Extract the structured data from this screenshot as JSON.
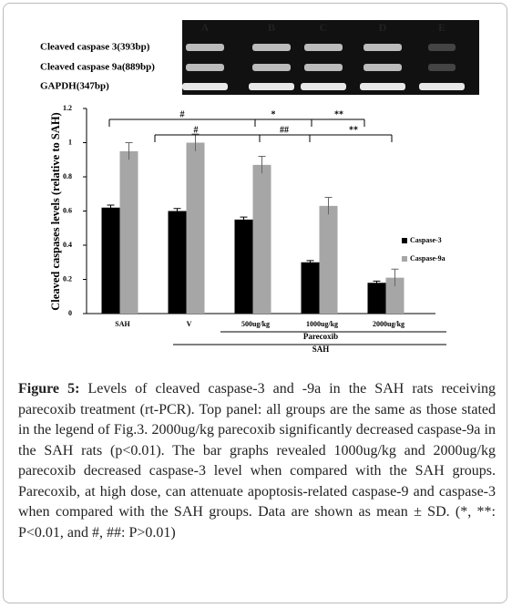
{
  "gel": {
    "lanes": [
      "A",
      "B",
      "C",
      "D",
      "E"
    ],
    "rows": [
      "Cleaved caspase 3(393bp)",
      "Cleaved caspase 9a(889bp)",
      "GAPDH(347bp)"
    ]
  },
  "chart_data": {
    "type": "bar",
    "y_label": "Cleaved caspases levels (relative to SAH)",
    "categories": [
      "SAH",
      "V",
      "500ug/kg",
      "1000ug/kg",
      "2000ug/kg"
    ],
    "series": [
      {
        "name": "Caspase-3",
        "color": "#000000",
        "values": [
          0.62,
          0.6,
          0.55,
          0.3,
          0.18
        ],
        "errors": [
          0.015,
          0.015,
          0.015,
          0.01,
          0.01
        ]
      },
      {
        "name": "Caspase-9a",
        "color": "#a6a6a6",
        "values": [
          0.95,
          1.0,
          0.87,
          0.63,
          0.21
        ],
        "errors": [
          0.05,
          0.05,
          0.05,
          0.05,
          0.05
        ]
      }
    ],
    "ylim": [
      0,
      1.2
    ],
    "yticks": [
      0,
      0.2,
      0.4,
      0.6,
      0.8,
      1,
      1.2
    ],
    "legend": "right",
    "group_labels": [
      "Parecoxib",
      "SAH"
    ],
    "annotations": [
      "#",
      "*",
      "**",
      "#",
      "##",
      "**"
    ]
  },
  "caption": {
    "label": "Figure 5:",
    "text": "Levels of cleaved caspase-3 and -9a in the SAH rats receiving parecoxib treatment (rt-PCR). Top panel: all groups are the same as those stated in the legend of Fig.3. 2000ug/kg parecoxib significantly decreased caspase-9a in the SAH rats (p<0.01). The bar graphs revealed 1000ug/kg and 2000ug/kg parecoxib decreased caspase-3 level when compared with the SAH groups. Parecoxib, at high dose, can attenuate apoptosis-related caspase-9 and caspase-3 when compared with the SAH groups. Data are shown as mean ± SD. (*, **: P<0.01, and #, ##: P>0.01)"
  }
}
